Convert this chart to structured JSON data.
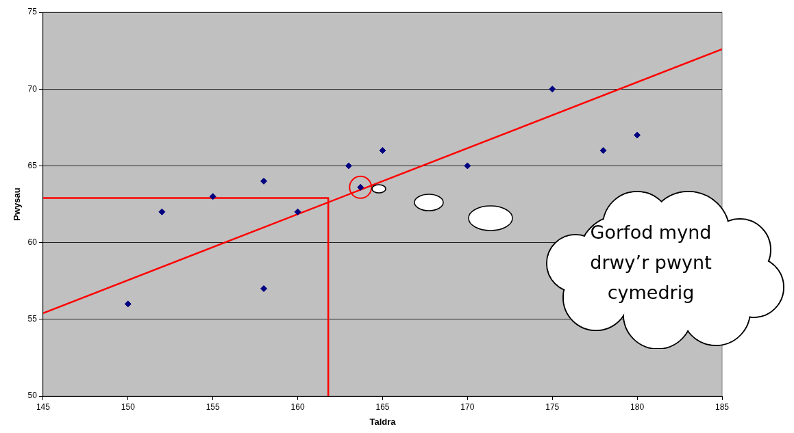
{
  "chart_data": {
    "type": "scatter",
    "xlabel": "Taldra",
    "ylabel": "Pwysau",
    "xlim": [
      145,
      185
    ],
    "xticks": [
      145,
      150,
      155,
      160,
      165,
      170,
      175,
      180,
      185
    ],
    "ylim": [
      50,
      75
    ],
    "yticks": [
      50,
      55,
      60,
      65,
      70,
      75
    ],
    "grid": "y",
    "legend": false,
    "series": [
      {
        "type": "scatter",
        "marker": "diamond",
        "color": "#000080",
        "x": [
          150,
          152,
          155,
          158,
          158,
          160,
          163,
          163.7,
          165,
          170,
          175,
          178,
          180
        ],
        "values": [
          56,
          62,
          63,
          64,
          57,
          62,
          65,
          63.6,
          66,
          65,
          70,
          66,
          67
        ]
      },
      {
        "type": "line",
        "marker": "none",
        "color": "#ff0000",
        "x": [
          145,
          185
        ],
        "values": [
          55.4,
          72.6
        ]
      },
      {
        "type": "line",
        "marker": "none",
        "color": "#ff0000",
        "x": [
          145,
          161.8,
          161.8
        ],
        "values": [
          62.9,
          62.9,
          50
        ]
      },
      {
        "type": "scatter",
        "marker": "circle",
        "color": "#ff0000",
        "x": [
          163.7
        ],
        "values": [
          63.6
        ]
      }
    ],
    "annotations": [
      "Gorfod mynd drwy’r pwynt cymedrig"
    ]
  }
}
